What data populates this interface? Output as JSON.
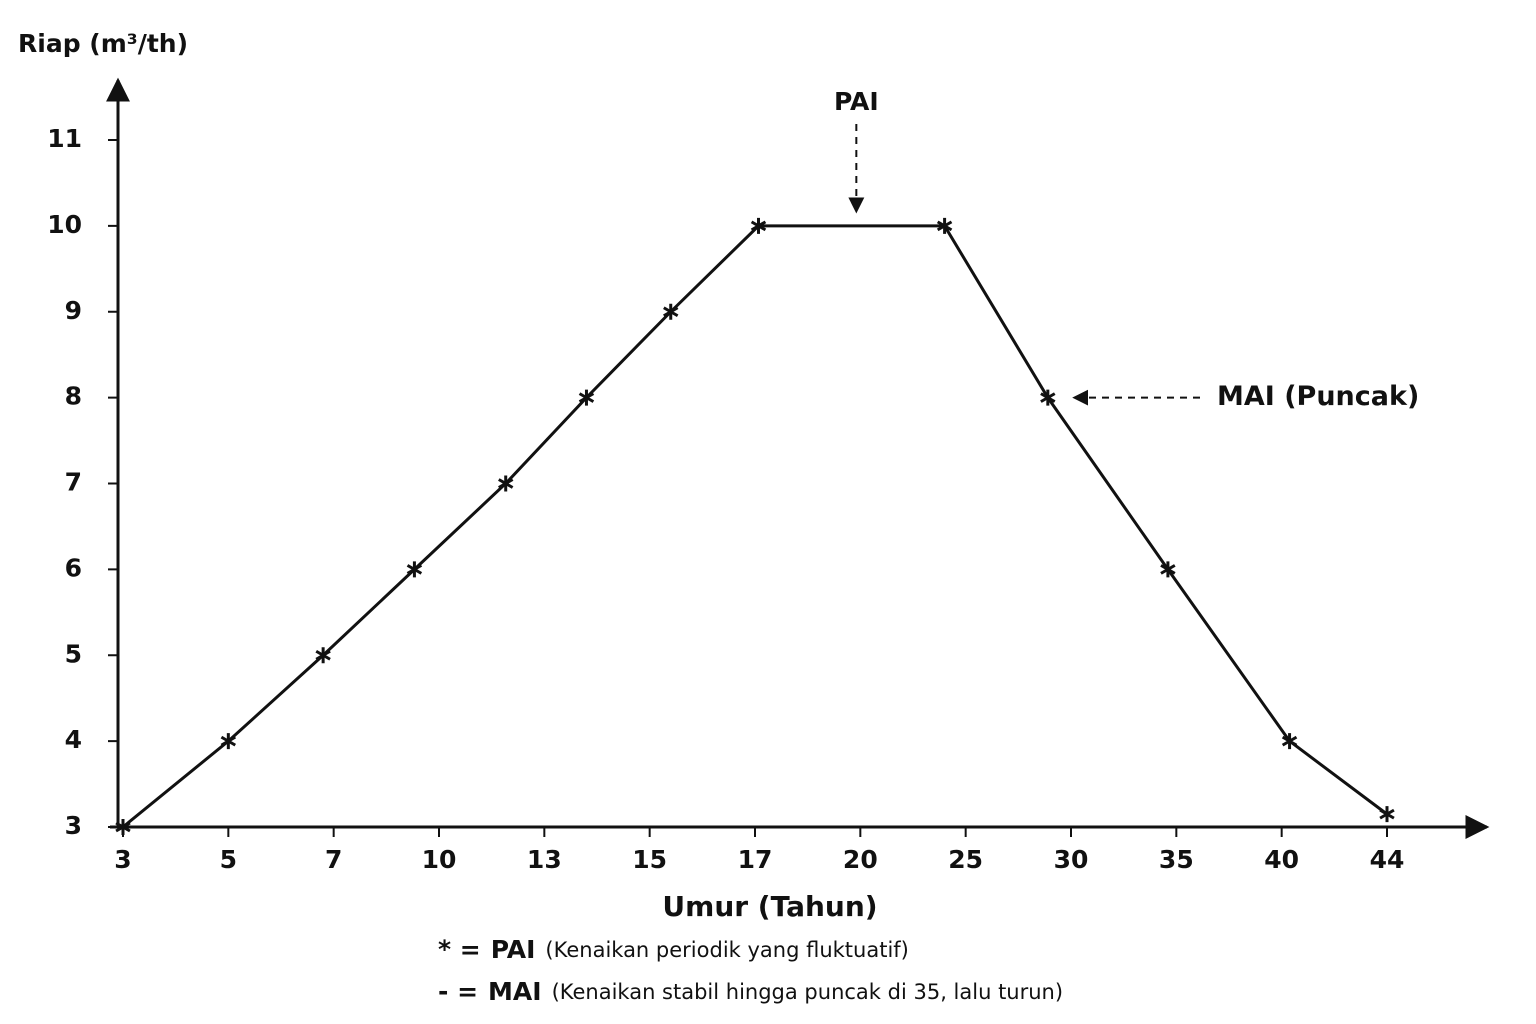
{
  "chart_data": {
    "type": "line",
    "y_label": "Riap (m³/th)",
    "x_label": "Umur (Tahun)",
    "x": [
      3,
      5,
      6.8,
      9.3,
      11.9,
      13.8,
      15.4,
      17.1,
      24,
      28.9,
      34.6,
      40.3,
      44
    ],
    "series": [
      {
        "name": "PAI",
        "color": "#111111",
        "values": [
          3,
          4,
          5,
          6,
          7,
          8,
          9,
          10,
          10,
          8,
          6,
          4,
          3.15
        ]
      }
    ],
    "xlim": [
      3,
      44
    ],
    "xticks": [
      3,
      5,
      7,
      10,
      13,
      15,
      17,
      20,
      25,
      30,
      35,
      40,
      44
    ],
    "ylim": [
      3,
      11
    ],
    "yticks": [
      3,
      4,
      5,
      6,
      7,
      8,
      9,
      10,
      11
    ],
    "annotations": [
      {
        "text": "PAI",
        "x": 20,
        "y": 10
      },
      {
        "text": "MAI (Puncak)",
        "x": 28.9,
        "y": 8
      }
    ],
    "notes": [
      {
        "symbol": "* =",
        "label": "PAI",
        "text": "(Kenaikan periodik yang fluktuatif)"
      },
      {
        "symbol": "- =",
        "label": "MAI",
        "text": "(Kenaikan stabil hingga puncak di 35, lalu turun)"
      }
    ]
  }
}
